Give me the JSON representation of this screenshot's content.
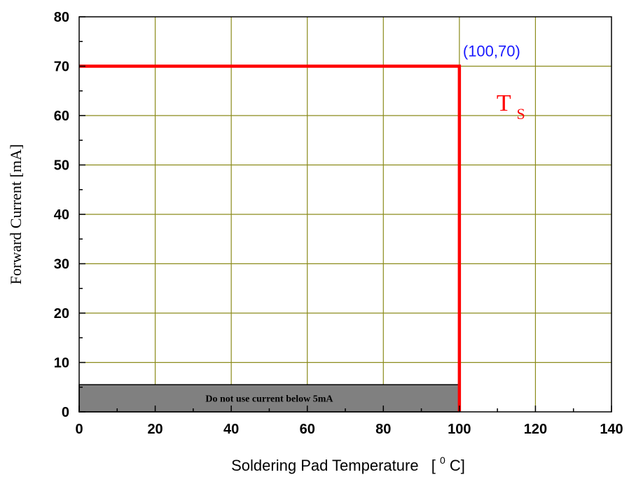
{
  "chart_data": {
    "type": "line",
    "xlabel": "Soldering Pad Temperature",
    "xlabel_unit_prefix": "[",
    "xlabel_unit_sup": "0",
    "xlabel_unit_suffix": "C]",
    "ylabel": "Forward Current [mA]",
    "xlim": [
      0,
      140
    ],
    "ylim": [
      0,
      80
    ],
    "x_ticks": [
      0,
      20,
      40,
      60,
      80,
      100,
      120,
      140
    ],
    "y_ticks": [
      0,
      10,
      20,
      30,
      40,
      50,
      60,
      70,
      80
    ],
    "grid": true,
    "series": [
      {
        "name": "T",
        "name_sub": "S",
        "color": "#ff0000",
        "x": [
          0,
          100,
          100
        ],
        "y": [
          70,
          70,
          0
        ]
      }
    ],
    "annotations": {
      "point_label": "(100,70)",
      "point_label_color": "#1a1aff",
      "band": {
        "text": "Do not use current below 5mA",
        "x_range": [
          0,
          100
        ],
        "y_range": [
          0,
          5.5
        ],
        "color": "#808080"
      }
    },
    "colors": {
      "grid": "#8b8b1a",
      "axis": "#000000"
    }
  }
}
